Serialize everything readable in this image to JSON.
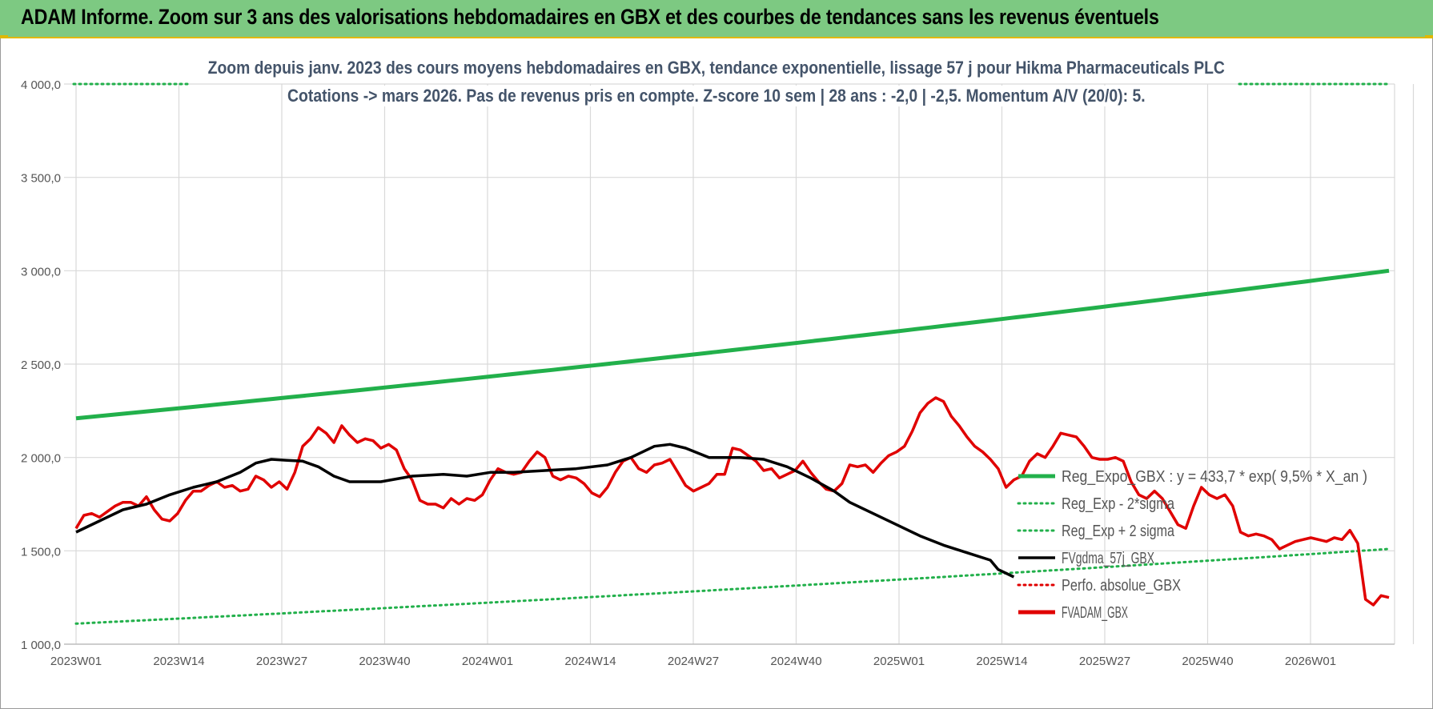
{
  "banner": {
    "title": "ADAM Informe. Zoom sur 3 ans des valorisations hebdomadaires en GBX et des courbes de tendances sans les revenus éventuels"
  },
  "chart_data": {
    "type": "line",
    "title_line1": "Zoom depuis janv. 2023 des cours moyens hebdomadaires en GBX, tendance exponentielle, lissage 57 j pour Hikma Pharmaceuticals PLC",
    "title_line2": "Cotations -> mars 2026. Pas de revenus pris en compte. Z-score 10 sem | 28 ans : -2,0 | -2,5. Momentum A/V (20/0): 5.",
    "ylim": [
      1000,
      4000
    ],
    "yticks": [
      1000,
      1500,
      2000,
      2500,
      3000,
      3500,
      4000
    ],
    "ytick_labels": [
      "1 000,0",
      "1 500,0",
      "2 000,0",
      "2 500,0",
      "3 000,0",
      "3 500,0",
      "4 000,0"
    ],
    "xtick_labels": [
      "2023W01",
      "2023W14",
      "2023W27",
      "2023W40",
      "2024W01",
      "2024W14",
      "2024W27",
      "2024W40",
      "2025W01",
      "2025W14",
      "2025W27",
      "2025W40",
      "2026W01"
    ],
    "x_week_count": 170,
    "grid": true,
    "legend_position": "right",
    "legend": [
      {
        "label": "Reg_Expo_GBX : y = 433,7 * exp( 9,5% *  X_an )",
        "color": "#22b04b",
        "style": "solid-thick"
      },
      {
        "label": "Reg_Exp - 2*sigma",
        "color": "#22b04b",
        "style": "dotted"
      },
      {
        "label": "Reg_Exp + 2 sigma",
        "color": "#22b04b",
        "style": "dotted"
      },
      {
        "label": "FVgdma_57j_GBX",
        "color": "#000000",
        "style": "solid"
      },
      {
        "label": "Perfo. absolue_GBX",
        "color": "#e00000",
        "style": "dotted"
      },
      {
        "label": "FVADAM_GBX",
        "color": "#e00000",
        "style": "solid-thick"
      }
    ],
    "series": [
      {
        "name": "Reg_Expo_GBX : y = 433,7 * exp( 9,5% *  X_an )",
        "color": "#22b04b",
        "start": 2210,
        "end": 3000
      },
      {
        "name": "Reg_Exp - 2*sigma",
        "color": "#22b04b",
        "start": 1110,
        "end": 1510
      },
      {
        "name": "Reg_Exp + 2 sigma",
        "color": "#22b04b",
        "start": 4000,
        "end": 4000
      },
      {
        "name": "FVgdma_57j_GBX",
        "color": "#000000",
        "points": [
          [
            0,
            1600
          ],
          [
            6,
            1660
          ],
          [
            12,
            1720
          ],
          [
            18,
            1750
          ],
          [
            24,
            1800
          ],
          [
            30,
            1840
          ],
          [
            36,
            1870
          ],
          [
            42,
            1920
          ],
          [
            46,
            1970
          ],
          [
            50,
            1990
          ],
          [
            54,
            1985
          ],
          [
            58,
            1980
          ],
          [
            62,
            1950
          ],
          [
            66,
            1900
          ],
          [
            70,
            1870
          ],
          [
            78,
            1870
          ],
          [
            86,
            1900
          ],
          [
            94,
            1910
          ],
          [
            100,
            1900
          ],
          [
            106,
            1920
          ],
          [
            112,
            1920
          ],
          [
            120,
            1930
          ],
          [
            128,
            1940
          ],
          [
            136,
            1960
          ],
          [
            142,
            2000
          ],
          [
            148,
            2060
          ],
          [
            152,
            2070
          ],
          [
            156,
            2050
          ],
          [
            162,
            2000
          ],
          [
            170,
            2000
          ],
          [
            176,
            1990
          ],
          [
            182,
            1950
          ],
          [
            188,
            1890
          ],
          [
            194,
            1820
          ],
          [
            198,
            1760
          ],
          [
            204,
            1700
          ],
          [
            210,
            1640
          ],
          [
            216,
            1580
          ],
          [
            222,
            1530
          ],
          [
            228,
            1490
          ],
          [
            234,
            1450
          ],
          [
            236,
            1400
          ],
          [
            240,
            1360
          ]
        ]
      },
      {
        "name": "FVADAM_GBX",
        "color": "#e00000",
        "points": [
          [
            0,
            1620
          ],
          [
            2,
            1690
          ],
          [
            4,
            1700
          ],
          [
            6,
            1680
          ],
          [
            8,
            1710
          ],
          [
            10,
            1740
          ],
          [
            12,
            1760
          ],
          [
            14,
            1760
          ],
          [
            16,
            1740
          ],
          [
            18,
            1790
          ],
          [
            20,
            1720
          ],
          [
            22,
            1670
          ],
          [
            24,
            1660
          ],
          [
            26,
            1700
          ],
          [
            28,
            1770
          ],
          [
            30,
            1820
          ],
          [
            32,
            1820
          ],
          [
            34,
            1850
          ],
          [
            36,
            1870
          ],
          [
            38,
            1840
          ],
          [
            40,
            1850
          ],
          [
            42,
            1820
          ],
          [
            44,
            1830
          ],
          [
            46,
            1900
          ],
          [
            48,
            1880
          ],
          [
            50,
            1840
          ],
          [
            52,
            1870
          ],
          [
            54,
            1830
          ],
          [
            56,
            1920
          ],
          [
            58,
            2060
          ],
          [
            60,
            2100
          ],
          [
            62,
            2160
          ],
          [
            64,
            2130
          ],
          [
            66,
            2080
          ],
          [
            68,
            2170
          ],
          [
            70,
            2120
          ],
          [
            72,
            2080
          ],
          [
            74,
            2100
          ],
          [
            76,
            2090
          ],
          [
            78,
            2050
          ],
          [
            80,
            2070
          ],
          [
            82,
            2040
          ],
          [
            84,
            1940
          ],
          [
            86,
            1880
          ],
          [
            88,
            1770
          ],
          [
            90,
            1750
          ],
          [
            92,
            1750
          ],
          [
            94,
            1730
          ],
          [
            96,
            1780
          ],
          [
            98,
            1750
          ],
          [
            100,
            1780
          ],
          [
            102,
            1770
          ],
          [
            104,
            1800
          ],
          [
            106,
            1880
          ],
          [
            108,
            1940
          ],
          [
            110,
            1920
          ],
          [
            112,
            1910
          ],
          [
            114,
            1920
          ],
          [
            116,
            1980
          ],
          [
            118,
            2030
          ],
          [
            120,
            2000
          ],
          [
            122,
            1900
          ],
          [
            124,
            1880
          ],
          [
            126,
            1900
          ],
          [
            128,
            1890
          ],
          [
            130,
            1860
          ],
          [
            132,
            1810
          ],
          [
            134,
            1790
          ],
          [
            136,
            1840
          ],
          [
            138,
            1920
          ],
          [
            140,
            1980
          ],
          [
            142,
            2000
          ],
          [
            144,
            1940
          ],
          [
            146,
            1920
          ],
          [
            148,
            1960
          ],
          [
            150,
            1970
          ],
          [
            152,
            1990
          ],
          [
            154,
            1920
          ],
          [
            156,
            1850
          ],
          [
            158,
            1820
          ],
          [
            160,
            1840
          ],
          [
            162,
            1860
          ],
          [
            164,
            1910
          ],
          [
            166,
            1910
          ],
          [
            168,
            2050
          ],
          [
            170,
            2040
          ],
          [
            172,
            2010
          ],
          [
            174,
            1980
          ],
          [
            176,
            1930
          ],
          [
            178,
            1940
          ],
          [
            180,
            1890
          ],
          [
            182,
            1910
          ],
          [
            184,
            1930
          ],
          [
            186,
            1980
          ],
          [
            188,
            1920
          ],
          [
            190,
            1870
          ],
          [
            192,
            1830
          ],
          [
            194,
            1820
          ],
          [
            196,
            1860
          ],
          [
            198,
            1960
          ],
          [
            200,
            1950
          ],
          [
            202,
            1960
          ],
          [
            204,
            1920
          ],
          [
            206,
            1970
          ],
          [
            208,
            2010
          ],
          [
            210,
            2030
          ],
          [
            212,
            2060
          ],
          [
            214,
            2140
          ],
          [
            216,
            2240
          ],
          [
            218,
            2290
          ],
          [
            220,
            2320
          ],
          [
            222,
            2300
          ],
          [
            224,
            2220
          ],
          [
            226,
            2170
          ],
          [
            228,
            2110
          ],
          [
            230,
            2060
          ],
          [
            232,
            2030
          ],
          [
            234,
            1990
          ],
          [
            236,
            1940
          ],
          [
            238,
            1840
          ],
          [
            240,
            1880
          ],
          [
            242,
            1900
          ],
          [
            244,
            1980
          ],
          [
            246,
            2020
          ],
          [
            248,
            2000
          ],
          [
            250,
            2060
          ],
          [
            252,
            2130
          ],
          [
            254,
            2120
          ],
          [
            256,
            2110
          ],
          [
            258,
            2060
          ],
          [
            260,
            2000
          ],
          [
            262,
            1990
          ],
          [
            264,
            1990
          ],
          [
            266,
            2000
          ],
          [
            268,
            1980
          ],
          [
            270,
            1870
          ],
          [
            272,
            1800
          ],
          [
            274,
            1780
          ],
          [
            276,
            1820
          ],
          [
            278,
            1780
          ],
          [
            280,
            1710
          ],
          [
            282,
            1640
          ],
          [
            284,
            1620
          ],
          [
            286,
            1740
          ],
          [
            288,
            1840
          ],
          [
            290,
            1800
          ],
          [
            292,
            1780
          ],
          [
            294,
            1800
          ],
          [
            296,
            1740
          ],
          [
            298,
            1600
          ],
          [
            300,
            1580
          ],
          [
            302,
            1590
          ],
          [
            304,
            1580
          ],
          [
            306,
            1560
          ],
          [
            308,
            1510
          ],
          [
            310,
            1530
          ],
          [
            312,
            1550
          ],
          [
            314,
            1560
          ],
          [
            316,
            1570
          ],
          [
            318,
            1560
          ],
          [
            320,
            1550
          ],
          [
            322,
            1570
          ],
          [
            324,
            1560
          ],
          [
            326,
            1610
          ],
          [
            328,
            1540
          ],
          [
            330,
            1240
          ],
          [
            332,
            1210
          ],
          [
            334,
            1260
          ],
          [
            336,
            1250
          ]
        ]
      }
    ]
  }
}
